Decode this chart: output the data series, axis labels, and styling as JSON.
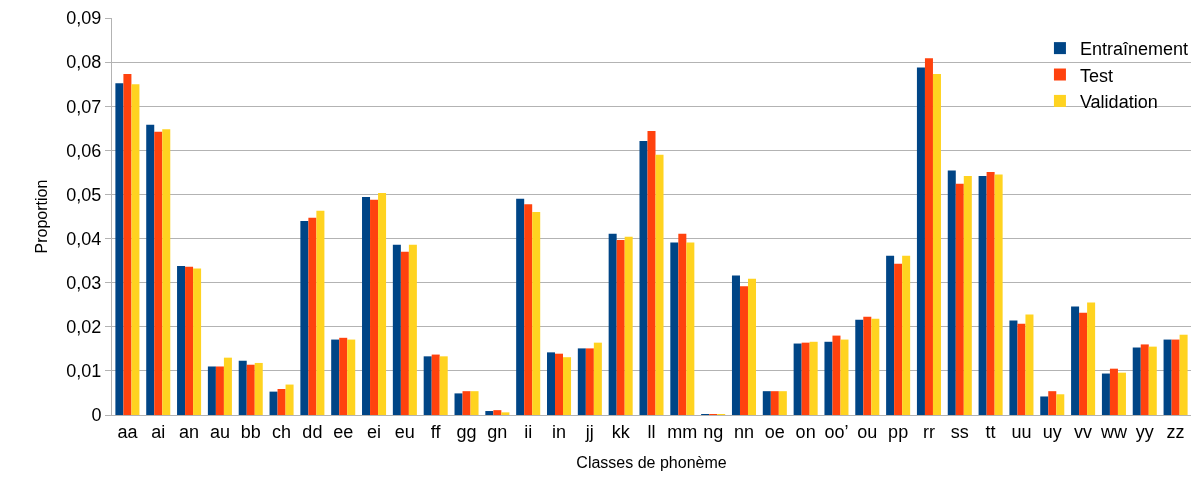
{
  "chart_data": {
    "type": "bar",
    "xlabel": "Classes de phonème",
    "ylabel": "Proportion",
    "categories": [
      "aa",
      "ai",
      "an",
      "au",
      "bb",
      "ch",
      "dd",
      "ee",
      "ei",
      "eu",
      "ff",
      "gg",
      "gn",
      "ii",
      "in",
      "jj",
      "kk",
      "ll",
      "mm",
      "ng",
      "nn",
      "oe",
      "on",
      "oo’",
      "ou",
      "pp",
      "rr",
      "ss",
      "tt",
      "uu",
      "uy",
      "vv",
      "ww",
      "yy",
      "zz"
    ],
    "series": [
      {
        "name": "Entraînement",
        "color": "#004586",
        "values": [
          0.0752,
          0.0658,
          0.0338,
          0.011,
          0.0123,
          0.0053,
          0.044,
          0.0171,
          0.0494,
          0.0386,
          0.0133,
          0.0049,
          0.0009,
          0.049,
          0.0142,
          0.0151,
          0.0411,
          0.0621,
          0.0391,
          0.0002,
          0.0316,
          0.0054,
          0.0162,
          0.0166,
          0.0216,
          0.0361,
          0.0788,
          0.0554,
          0.0542,
          0.0214,
          0.0042,
          0.0246,
          0.0094,
          0.0153,
          0.0171
        ]
      },
      {
        "name": "Test",
        "color": "#ff420e",
        "values": [
          0.0773,
          0.0642,
          0.0336,
          0.011,
          0.0114,
          0.0059,
          0.0447,
          0.0175,
          0.0488,
          0.037,
          0.0137,
          0.0054,
          0.0011,
          0.0478,
          0.0139,
          0.0151,
          0.0397,
          0.0644,
          0.0411,
          0.0002,
          0.0292,
          0.0054,
          0.0164,
          0.018,
          0.0223,
          0.0343,
          0.0809,
          0.0524,
          0.0551,
          0.0207,
          0.0054,
          0.0232,
          0.0105,
          0.016,
          0.0171
        ]
      },
      {
        "name": "Validation",
        "color": "#ffd320",
        "values": [
          0.075,
          0.0648,
          0.0332,
          0.013,
          0.0118,
          0.0069,
          0.0463,
          0.0171,
          0.0503,
          0.0386,
          0.0133,
          0.0054,
          0.0006,
          0.046,
          0.0131,
          0.0164,
          0.0404,
          0.059,
          0.0391,
          0.0001,
          0.0309,
          0.0054,
          0.0166,
          0.0171,
          0.0218,
          0.0361,
          0.0773,
          0.0542,
          0.0545,
          0.0228,
          0.0047,
          0.0255,
          0.0096,
          0.0155,
          0.0182
        ]
      }
    ],
    "ylim": [
      0,
      0.09
    ],
    "yticks": [
      0,
      {
        "value": 0.01,
        "label": "0,01"
      },
      {
        "value": 0.02,
        "label": "0,02"
      },
      {
        "value": 0.03,
        "label": "0,03"
      },
      {
        "value": 0.04,
        "label": "0,04"
      },
      {
        "value": 0.05,
        "label": "0,05"
      },
      {
        "value": 0.06,
        "label": "0,06"
      },
      {
        "value": 0.07,
        "label": "0,07"
      },
      {
        "value": 0.08,
        "label": "0,08"
      },
      {
        "value": 0.09,
        "label": "0,09"
      }
    ],
    "grid": "y",
    "legend": "top right"
  }
}
